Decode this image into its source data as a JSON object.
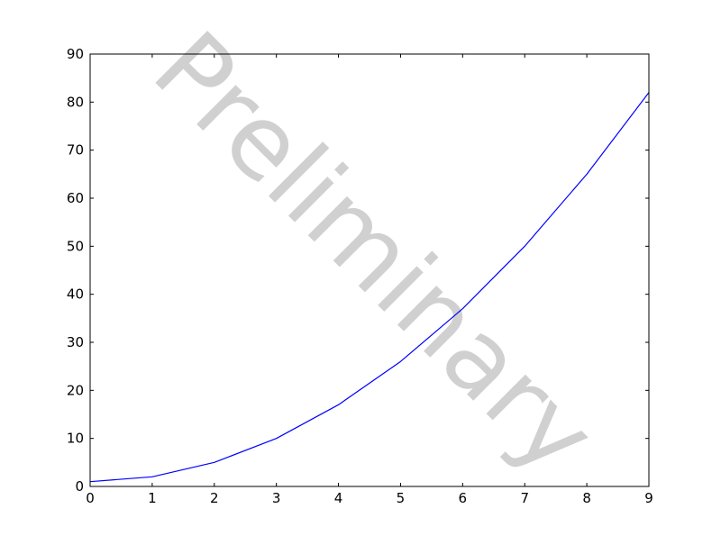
{
  "chart_data": {
    "type": "line",
    "title": "",
    "xlabel": "",
    "ylabel": "",
    "xlim": [
      0,
      9
    ],
    "ylim": [
      0,
      90
    ],
    "x_ticks": [
      0,
      1,
      2,
      3,
      4,
      5,
      6,
      7,
      8,
      9
    ],
    "y_ticks": [
      0,
      10,
      20,
      30,
      40,
      50,
      60,
      70,
      80,
      90
    ],
    "grid": false,
    "legend": "none",
    "series": [
      {
        "color": "#0000ff",
        "x": [
          0,
          1,
          2,
          3,
          4,
          5,
          6,
          7,
          8,
          9
        ],
        "y": [
          1,
          2,
          5,
          10,
          17,
          26,
          37,
          50,
          65,
          82
        ]
      }
    ],
    "annotations": [
      {
        "text": "Preliminary",
        "role": "watermark",
        "color": "#d0d0d0",
        "rotation_deg": 45
      }
    ]
  }
}
